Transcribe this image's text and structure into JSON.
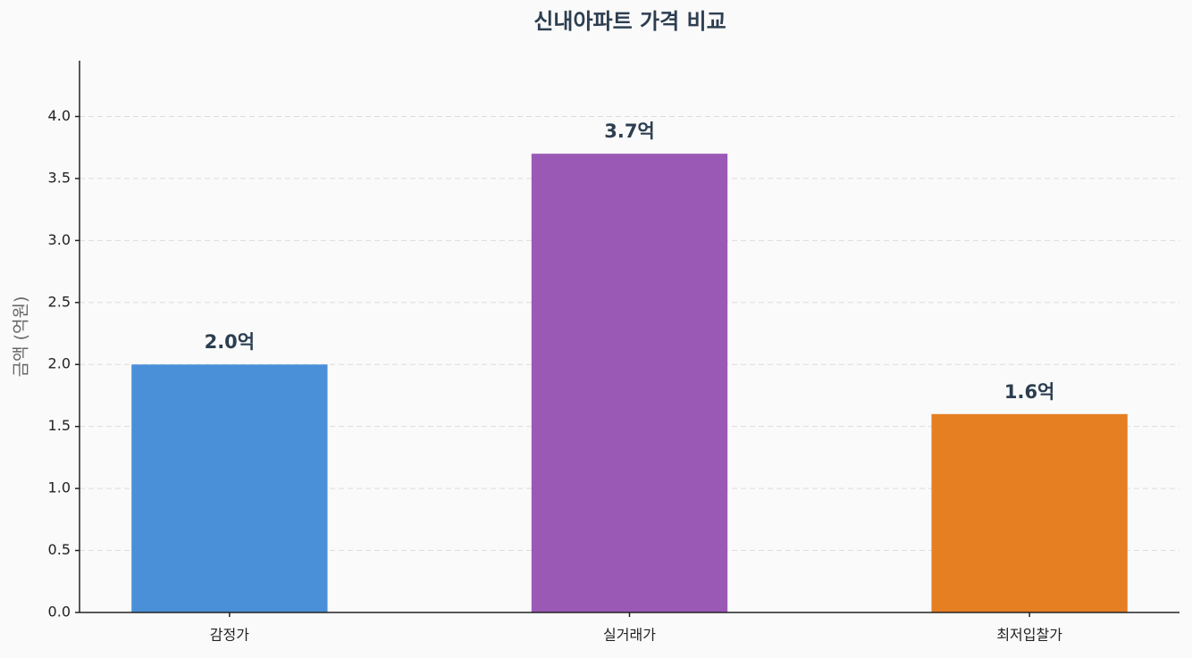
{
  "chart_data": {
    "type": "bar",
    "title": "신내아파트 가격 비교",
    "y_label": "금액 (억원)",
    "categories": [
      "감정가",
      "실거래가",
      "최저입찰가"
    ],
    "values": [
      2.0,
      3.7,
      1.6
    ],
    "value_labels": [
      "2.0억",
      "3.7억",
      "1.6억"
    ],
    "colors": [
      "#4a90d9",
      "#9b59b6",
      "#e67e22"
    ],
    "ylim": [
      0,
      4.45
    ],
    "yticks": [
      {
        "value": 0,
        "label": "0.0"
      },
      0.5,
      {
        "value": 1,
        "label": "1.0"
      },
      1.5,
      {
        "value": 2,
        "label": "2.0"
      },
      2.5,
      {
        "value": 3,
        "label": "3.0"
      },
      3.5,
      {
        "value": 4,
        "label": "4.0"
      }
    ],
    "grid": true
  }
}
